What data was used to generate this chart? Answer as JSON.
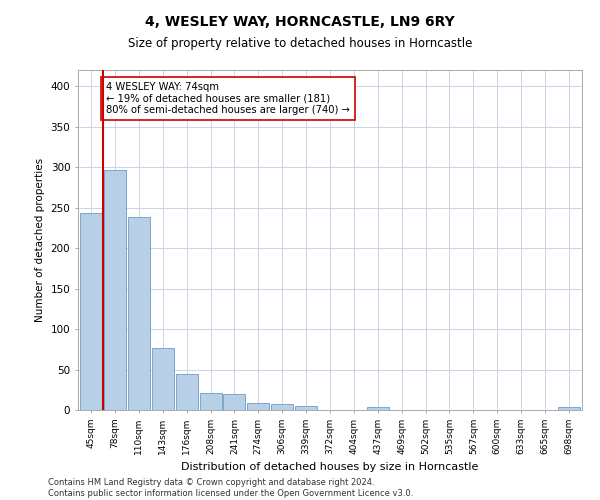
{
  "title": "4, WESLEY WAY, HORNCASTLE, LN9 6RY",
  "subtitle": "Size of property relative to detached houses in Horncastle",
  "xlabel": "Distribution of detached houses by size in Horncastle",
  "ylabel": "Number of detached properties",
  "categories": [
    "45sqm",
    "78sqm",
    "110sqm",
    "143sqm",
    "176sqm",
    "208sqm",
    "241sqm",
    "274sqm",
    "306sqm",
    "339sqm",
    "372sqm",
    "404sqm",
    "437sqm",
    "469sqm",
    "502sqm",
    "535sqm",
    "567sqm",
    "600sqm",
    "633sqm",
    "665sqm",
    "698sqm"
  ],
  "values": [
    243,
    297,
    238,
    76,
    45,
    21,
    20,
    9,
    8,
    5,
    0,
    0,
    4,
    0,
    0,
    0,
    0,
    0,
    0,
    0,
    4
  ],
  "bar_color": "#b8cfe8",
  "bar_edge_color": "#6b9ec8",
  "highlight_line_color": "#cc0000",
  "annotation_text": "4 WESLEY WAY: 74sqm\n← 19% of detached houses are smaller (181)\n80% of semi-detached houses are larger (740) →",
  "annotation_box_color": "#ffffff",
  "annotation_box_edge": "#cc0000",
  "background_color": "#ffffff",
  "grid_color": "#c8d4e8",
  "ylim": [
    0,
    420
  ],
  "yticks": [
    0,
    50,
    100,
    150,
    200,
    250,
    300,
    350,
    400
  ],
  "footer": "Contains HM Land Registry data © Crown copyright and database right 2024.\nContains public sector information licensed under the Open Government Licence v3.0."
}
